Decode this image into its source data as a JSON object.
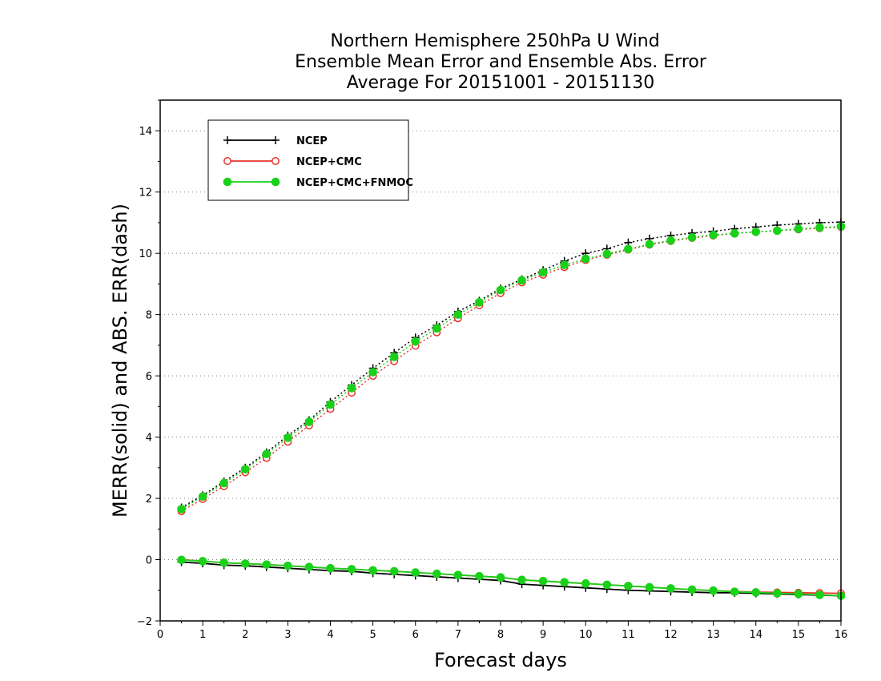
{
  "chart_data": {
    "type": "line",
    "title_lines": [
      "Northern Hemisphere 250hPa U Wind",
      "Ensemble Mean Error and Ensemble Abs. Error",
      "Average For 20151001 - 20151130"
    ],
    "xlabel": "Forecast days",
    "ylabel": "MERR(solid) and ABS. ERR(dash)",
    "xlim": [
      0,
      16
    ],
    "ylim": [
      -2,
      15
    ],
    "xticks": [
      0,
      1,
      2,
      3,
      4,
      5,
      6,
      7,
      8,
      9,
      10,
      11,
      12,
      13,
      14,
      15,
      16
    ],
    "yticks": [
      -2,
      0,
      2,
      4,
      6,
      8,
      10,
      12,
      14
    ],
    "grid": "horizontal dotted",
    "legend_position": "top-left",
    "x": [
      0.5,
      1,
      1.5,
      2,
      2.5,
      3,
      3.5,
      4,
      4.5,
      5,
      5.5,
      6,
      6.5,
      7,
      7.5,
      8,
      8.5,
      9,
      9.5,
      10,
      10.5,
      11,
      11.5,
      12,
      12.5,
      13,
      13.5,
      14,
      14.5,
      15,
      15.5,
      16
    ],
    "series": [
      {
        "name": "NCEP",
        "color": "#000000",
        "marker": "plus",
        "merr": [
          -0.08,
          -0.12,
          -0.18,
          -0.2,
          -0.24,
          -0.28,
          -0.32,
          -0.36,
          -0.38,
          -0.44,
          -0.48,
          -0.52,
          -0.56,
          -0.6,
          -0.64,
          -0.68,
          -0.8,
          -0.84,
          -0.88,
          -0.92,
          -0.96,
          -1.0,
          -1.02,
          -1.04,
          -1.06,
          -1.08,
          -1.08,
          -1.1,
          -1.12,
          -1.14,
          -1.16,
          -1.18
        ],
        "abs_err": [
          1.7,
          2.1,
          2.55,
          3.0,
          3.5,
          4.05,
          4.55,
          5.15,
          5.7,
          6.25,
          6.75,
          7.25,
          7.65,
          8.1,
          8.45,
          8.85,
          9.15,
          9.45,
          9.75,
          10.0,
          10.15,
          10.35,
          10.48,
          10.58,
          10.66,
          10.72,
          10.8,
          10.86,
          10.92,
          10.96,
          11.0,
          11.02
        ]
      },
      {
        "name": "NCEP+CMC",
        "color": "#e8322d",
        "marker": "circle-open",
        "merr": [
          0.0,
          -0.05,
          -0.1,
          -0.13,
          -0.16,
          -0.2,
          -0.24,
          -0.28,
          -0.31,
          -0.35,
          -0.38,
          -0.42,
          -0.46,
          -0.5,
          -0.54,
          -0.58,
          -0.66,
          -0.7,
          -0.74,
          -0.78,
          -0.82,
          -0.86,
          -0.9,
          -0.94,
          -0.98,
          -1.01,
          -1.04,
          -1.06,
          -1.07,
          -1.08,
          -1.09,
          -1.1
        ],
        "abs_err": [
          1.58,
          1.98,
          2.4,
          2.85,
          3.32,
          3.85,
          4.38,
          4.92,
          5.45,
          6.0,
          6.48,
          6.98,
          7.42,
          7.88,
          8.3,
          8.7,
          9.05,
          9.3,
          9.55,
          9.78,
          9.95,
          10.12,
          10.28,
          10.4,
          10.5,
          10.58,
          10.65,
          10.7,
          10.74,
          10.78,
          10.82,
          10.86
        ]
      },
      {
        "name": "NCEP+CMC+FNMOC",
        "color": "#19d119",
        "marker": "circle-filled",
        "merr": [
          -0.01,
          -0.05,
          -0.1,
          -0.13,
          -0.16,
          -0.2,
          -0.24,
          -0.28,
          -0.31,
          -0.35,
          -0.38,
          -0.42,
          -0.46,
          -0.5,
          -0.54,
          -0.58,
          -0.66,
          -0.7,
          -0.74,
          -0.78,
          -0.82,
          -0.86,
          -0.9,
          -0.94,
          -0.98,
          -1.01,
          -1.05,
          -1.07,
          -1.1,
          -1.12,
          -1.15,
          -1.18
        ],
        "abs_err": [
          1.65,
          2.06,
          2.5,
          2.95,
          3.45,
          3.98,
          4.5,
          5.06,
          5.6,
          6.12,
          6.62,
          7.12,
          7.55,
          8.0,
          8.4,
          8.8,
          9.12,
          9.38,
          9.62,
          9.82,
          9.98,
          10.14,
          10.3,
          10.42,
          10.52,
          10.6,
          10.65,
          10.7,
          10.74,
          10.8,
          10.84,
          10.88
        ]
      }
    ]
  }
}
